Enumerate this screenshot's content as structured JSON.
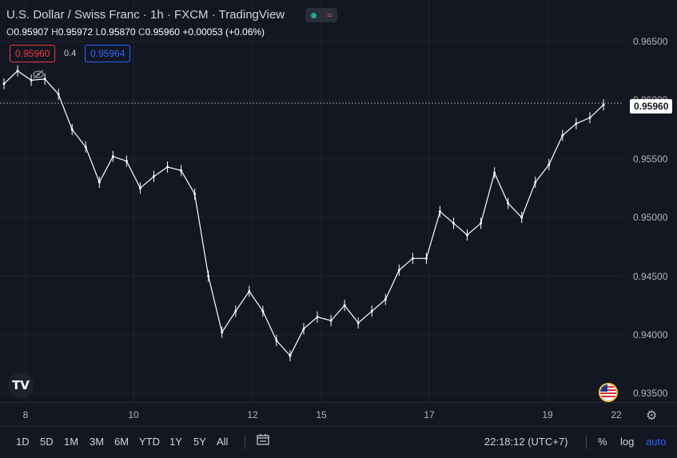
{
  "header": {
    "symbol_title": "U.S. Dollar / Swiss Franc · 1h · FXCM · TradingView",
    "status_icon": "market-status-icon",
    "ohlc": {
      "o_label": "O",
      "o": "0.95907",
      "h_label": "H",
      "h": "0.95972",
      "l_label": "L",
      "l": "0.95870",
      "c_label": "C",
      "c": "0.95960",
      "change": "+0.00053 (+0.06%)"
    },
    "sell_price": "0.95960",
    "spread": "0.4",
    "buy_price": "0.95964"
  },
  "price_axis": {
    "ticks": [
      "0.96500",
      "0.96000",
      "0.95500",
      "0.95000",
      "0.94500",
      "0.94000",
      "0.93500"
    ],
    "last_price": "0.95960"
  },
  "time_axis": {
    "labels": [
      "8",
      "10",
      "12",
      "15",
      "17",
      "19",
      "22"
    ],
    "settings_icon": "gear-icon"
  },
  "bottom_bar": {
    "ranges": [
      "1D",
      "5D",
      "1M",
      "3M",
      "6M",
      "YTD",
      "1Y",
      "5Y",
      "All"
    ],
    "calendar_icon": "calendar-range-icon",
    "clock": "22:18:12 (UTC+7)",
    "percent": "%",
    "log": "log",
    "auto": "auto"
  },
  "colors": {
    "background": "#131722",
    "candle": "#ffffff",
    "sell": "#f23645",
    "buy": "#2962ff",
    "auto_active": "#2962ff"
  },
  "chart_data": {
    "type": "line",
    "title": "U.S. Dollar / Swiss Franc · 1h · FXCM",
    "xlabel": "",
    "ylabel": "",
    "ylim": [
      0.933,
      0.967
    ],
    "x": [
      "8",
      "8",
      "8",
      "8",
      "9",
      "9",
      "9",
      "9",
      "9",
      "10",
      "10",
      "10",
      "10",
      "11",
      "11",
      "11",
      "11",
      "11",
      "12",
      "12",
      "12",
      "12",
      "12",
      "15",
      "15",
      "15",
      "15",
      "16",
      "16",
      "16",
      "16",
      "17",
      "17",
      "17",
      "17",
      "18",
      "18",
      "18",
      "18",
      "19",
      "19",
      "19",
      "19",
      "19",
      "19"
    ],
    "series": [
      {
        "values": [
          0.9614,
          0.9625,
          0.9617,
          0.9618,
          0.9605,
          0.9575,
          0.956,
          0.953,
          0.9552,
          0.9548,
          0.9525,
          0.9535,
          0.9543,
          0.954,
          0.952,
          0.945,
          0.9402,
          0.942,
          0.9437,
          0.942,
          0.9395,
          0.9382,
          0.9405,
          0.9415,
          0.9412,
          0.9425,
          0.941,
          0.942,
          0.943,
          0.9455,
          0.9465,
          0.9465,
          0.9505,
          0.9495,
          0.9485,
          0.9495,
          0.9538,
          0.9512,
          0.95,
          0.953,
          0.9545,
          0.957,
          0.958,
          0.9585,
          0.9596
        ]
      }
    ]
  }
}
